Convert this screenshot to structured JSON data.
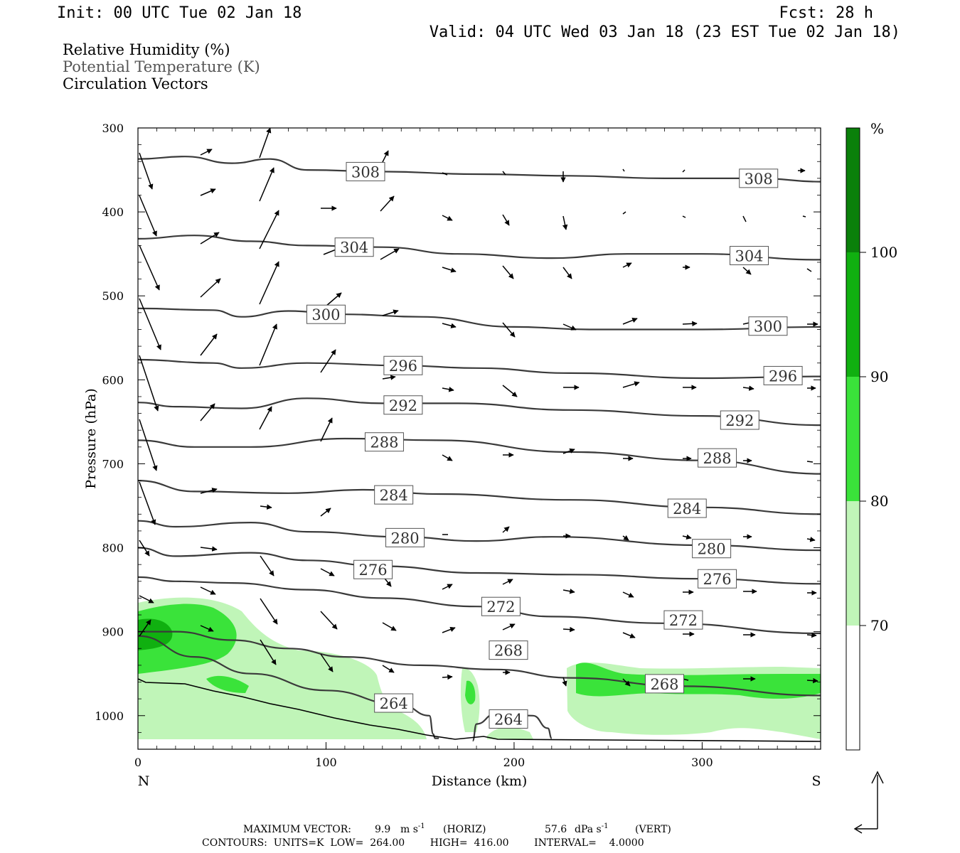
{
  "header": {
    "init": "Init: 00 UTC Tue 02 Jan 18",
    "fcst": "Fcst:   28 h",
    "valid": "Valid: 04 UTC Wed 03 Jan 18 (23 EST Tue 02 Jan 18)"
  },
  "legend": {
    "rh": "Relative Humidity (%)",
    "theta": "Potential Temperature (K)",
    "vectors": "Circulation Vectors"
  },
  "footer": {
    "max_vector_label": "MAXIMUM VECTOR:",
    "horiz_value": "9.9",
    "horiz_unit": "m s",
    "horiz_tag": "(HORIZ)",
    "vert_value": "57.6",
    "vert_unit": "dPa s",
    "vert_tag": "(VERT)",
    "exponent": "-1",
    "contours": "CONTOURS:  UNITS=K  LOW=  264.00        HIGH=  416.00        INTERVAL=    4.0000"
  },
  "colorbar": {
    "unit": "%",
    "labels": [
      "100",
      "90",
      "80",
      "70"
    ],
    "bins": [
      {
        "from": 60,
        "to": 70,
        "color": "#ffffff"
      },
      {
        "from": 70,
        "to": 80,
        "color": "#c0f5b8"
      },
      {
        "from": 80,
        "to": 90,
        "color": "#3ae33a"
      },
      {
        "from": 90,
        "to": 100,
        "color": "#10b010"
      },
      {
        "from": 100,
        "to": 110,
        "color": "#0a800a"
      }
    ]
  },
  "chart_data": {
    "type": "cross-section",
    "xlabel": "Distance (km)",
    "ylabel": "Pressure (hPa)",
    "xlim": [
      0,
      363
    ],
    "ylim": [
      300,
      1040
    ],
    "x_ticks": [
      0,
      100,
      200,
      300
    ],
    "y_ticks": [
      300,
      400,
      500,
      600,
      700,
      800,
      900,
      1000
    ],
    "left_end_label": "N",
    "right_end_label": "S",
    "theta_series": [
      {
        "level": 308,
        "points": [
          [
            0,
            337
          ],
          [
            25,
            334
          ],
          [
            50,
            342
          ],
          [
            70,
            337
          ],
          [
            90,
            350
          ],
          [
            130,
            352
          ],
          [
            180,
            355
          ],
          [
            230,
            357
          ],
          [
            280,
            360
          ],
          [
            330,
            360
          ],
          [
            363,
            364
          ]
        ],
        "labels": [
          [
            121,
            352
          ],
          [
            330,
            360
          ]
        ]
      },
      {
        "level": 304,
        "points": [
          [
            0,
            432
          ],
          [
            30,
            428
          ],
          [
            60,
            435
          ],
          [
            90,
            440
          ],
          [
            130,
            442
          ],
          [
            170,
            450
          ],
          [
            220,
            455
          ],
          [
            260,
            450
          ],
          [
            300,
            450
          ],
          [
            363,
            457
          ]
        ],
        "labels": [
          [
            115,
            442
          ],
          [
            325,
            452
          ]
        ]
      },
      {
        "level": 300,
        "points": [
          [
            0,
            515
          ],
          [
            40,
            517
          ],
          [
            55,
            525
          ],
          [
            80,
            518
          ],
          [
            110,
            522
          ],
          [
            150,
            525
          ],
          [
            200,
            537
          ],
          [
            240,
            540
          ],
          [
            300,
            540
          ],
          [
            363,
            537
          ]
        ],
        "labels": [
          [
            100,
            522
          ],
          [
            335,
            536
          ]
        ]
      },
      {
        "level": 296,
        "points": [
          [
            0,
            576
          ],
          [
            40,
            580
          ],
          [
            55,
            586
          ],
          [
            90,
            580
          ],
          [
            140,
            583
          ],
          [
            180,
            586
          ],
          [
            230,
            592
          ],
          [
            300,
            598
          ],
          [
            363,
            596
          ]
        ],
        "labels": [
          [
            141,
            583
          ],
          [
            343,
            595
          ]
        ]
      },
      {
        "level": 292,
        "points": [
          [
            0,
            627
          ],
          [
            20,
            632
          ],
          [
            55,
            634
          ],
          [
            90,
            622
          ],
          [
            130,
            628
          ],
          [
            170,
            628
          ],
          [
            230,
            636
          ],
          [
            300,
            643
          ],
          [
            363,
            654
          ]
        ],
        "labels": [
          [
            141,
            630
          ],
          [
            320,
            648
          ]
        ]
      },
      {
        "level": 288,
        "points": [
          [
            0,
            672
          ],
          [
            30,
            680
          ],
          [
            60,
            680
          ],
          [
            110,
            670
          ],
          [
            160,
            672
          ],
          [
            230,
            686
          ],
          [
            300,
            696
          ],
          [
            363,
            712
          ]
        ],
        "labels": [
          [
            131,
            674
          ],
          [
            308,
            693
          ]
        ]
      },
      {
        "level": 284,
        "points": [
          [
            0,
            720
          ],
          [
            30,
            733
          ],
          [
            80,
            735
          ],
          [
            120,
            731
          ],
          [
            160,
            736
          ],
          [
            230,
            743
          ],
          [
            300,
            752
          ],
          [
            363,
            760
          ]
        ],
        "labels": [
          [
            136,
            737
          ],
          [
            292,
            753
          ]
        ]
      },
      {
        "level": 280,
        "points": [
          [
            0,
            768
          ],
          [
            20,
            775
          ],
          [
            60,
            770
          ],
          [
            90,
            781
          ],
          [
            140,
            787
          ],
          [
            180,
            792
          ],
          [
            220,
            787
          ],
          [
            300,
            797
          ],
          [
            363,
            803
          ]
        ],
        "labels": [
          [
            142,
            788
          ],
          [
            305,
            801
          ]
        ]
      },
      {
        "level": 276,
        "points": [
          [
            0,
            800
          ],
          [
            20,
            810
          ],
          [
            60,
            806
          ],
          [
            90,
            815
          ],
          [
            130,
            822
          ],
          [
            180,
            830
          ],
          [
            230,
            832
          ],
          [
            300,
            837
          ],
          [
            363,
            843
          ]
        ],
        "labels": [
          [
            125,
            826
          ],
          [
            308,
            837
          ]
        ]
      },
      {
        "level": 272,
        "points": [
          [
            0,
            835
          ],
          [
            20,
            840
          ],
          [
            50,
            842
          ],
          [
            90,
            850
          ],
          [
            130,
            860
          ],
          [
            180,
            870
          ],
          [
            220,
            882
          ],
          [
            280,
            890
          ],
          [
            363,
            902
          ]
        ],
        "labels": [
          [
            193,
            870
          ],
          [
            290,
            886
          ]
        ]
      },
      {
        "level": 268,
        "points": [
          [
            0,
            900
          ],
          [
            20,
            900
          ],
          [
            50,
            910
          ],
          [
            80,
            920
          ],
          [
            110,
            930
          ],
          [
            150,
            940
          ],
          [
            190,
            945
          ],
          [
            230,
            955
          ],
          [
            290,
            965
          ],
          [
            363,
            976
          ]
        ],
        "labels": [
          [
            197,
            922
          ],
          [
            280,
            962
          ]
        ]
      },
      {
        "level": 264,
        "points": [
          [
            0,
            905
          ],
          [
            30,
            930
          ],
          [
            60,
            950
          ],
          [
            100,
            970
          ],
          [
            140,
            987
          ],
          [
            155,
            1000
          ],
          [
            157,
            1022
          ],
          [
            158,
            1027
          ],
          [
            160,
            1027
          ]
        ],
        "labels": [
          [
            136,
            985
          ]
        ]
      },
      {
        "level": 264,
        "points": [
          [
            178,
            1030
          ],
          [
            180,
            1010
          ],
          [
            190,
            998
          ],
          [
            210,
            1000
          ],
          [
            218,
            1015
          ],
          [
            220,
            1027
          ]
        ],
        "labels": [
          [
            197,
            1004
          ]
        ]
      }
    ]
  }
}
